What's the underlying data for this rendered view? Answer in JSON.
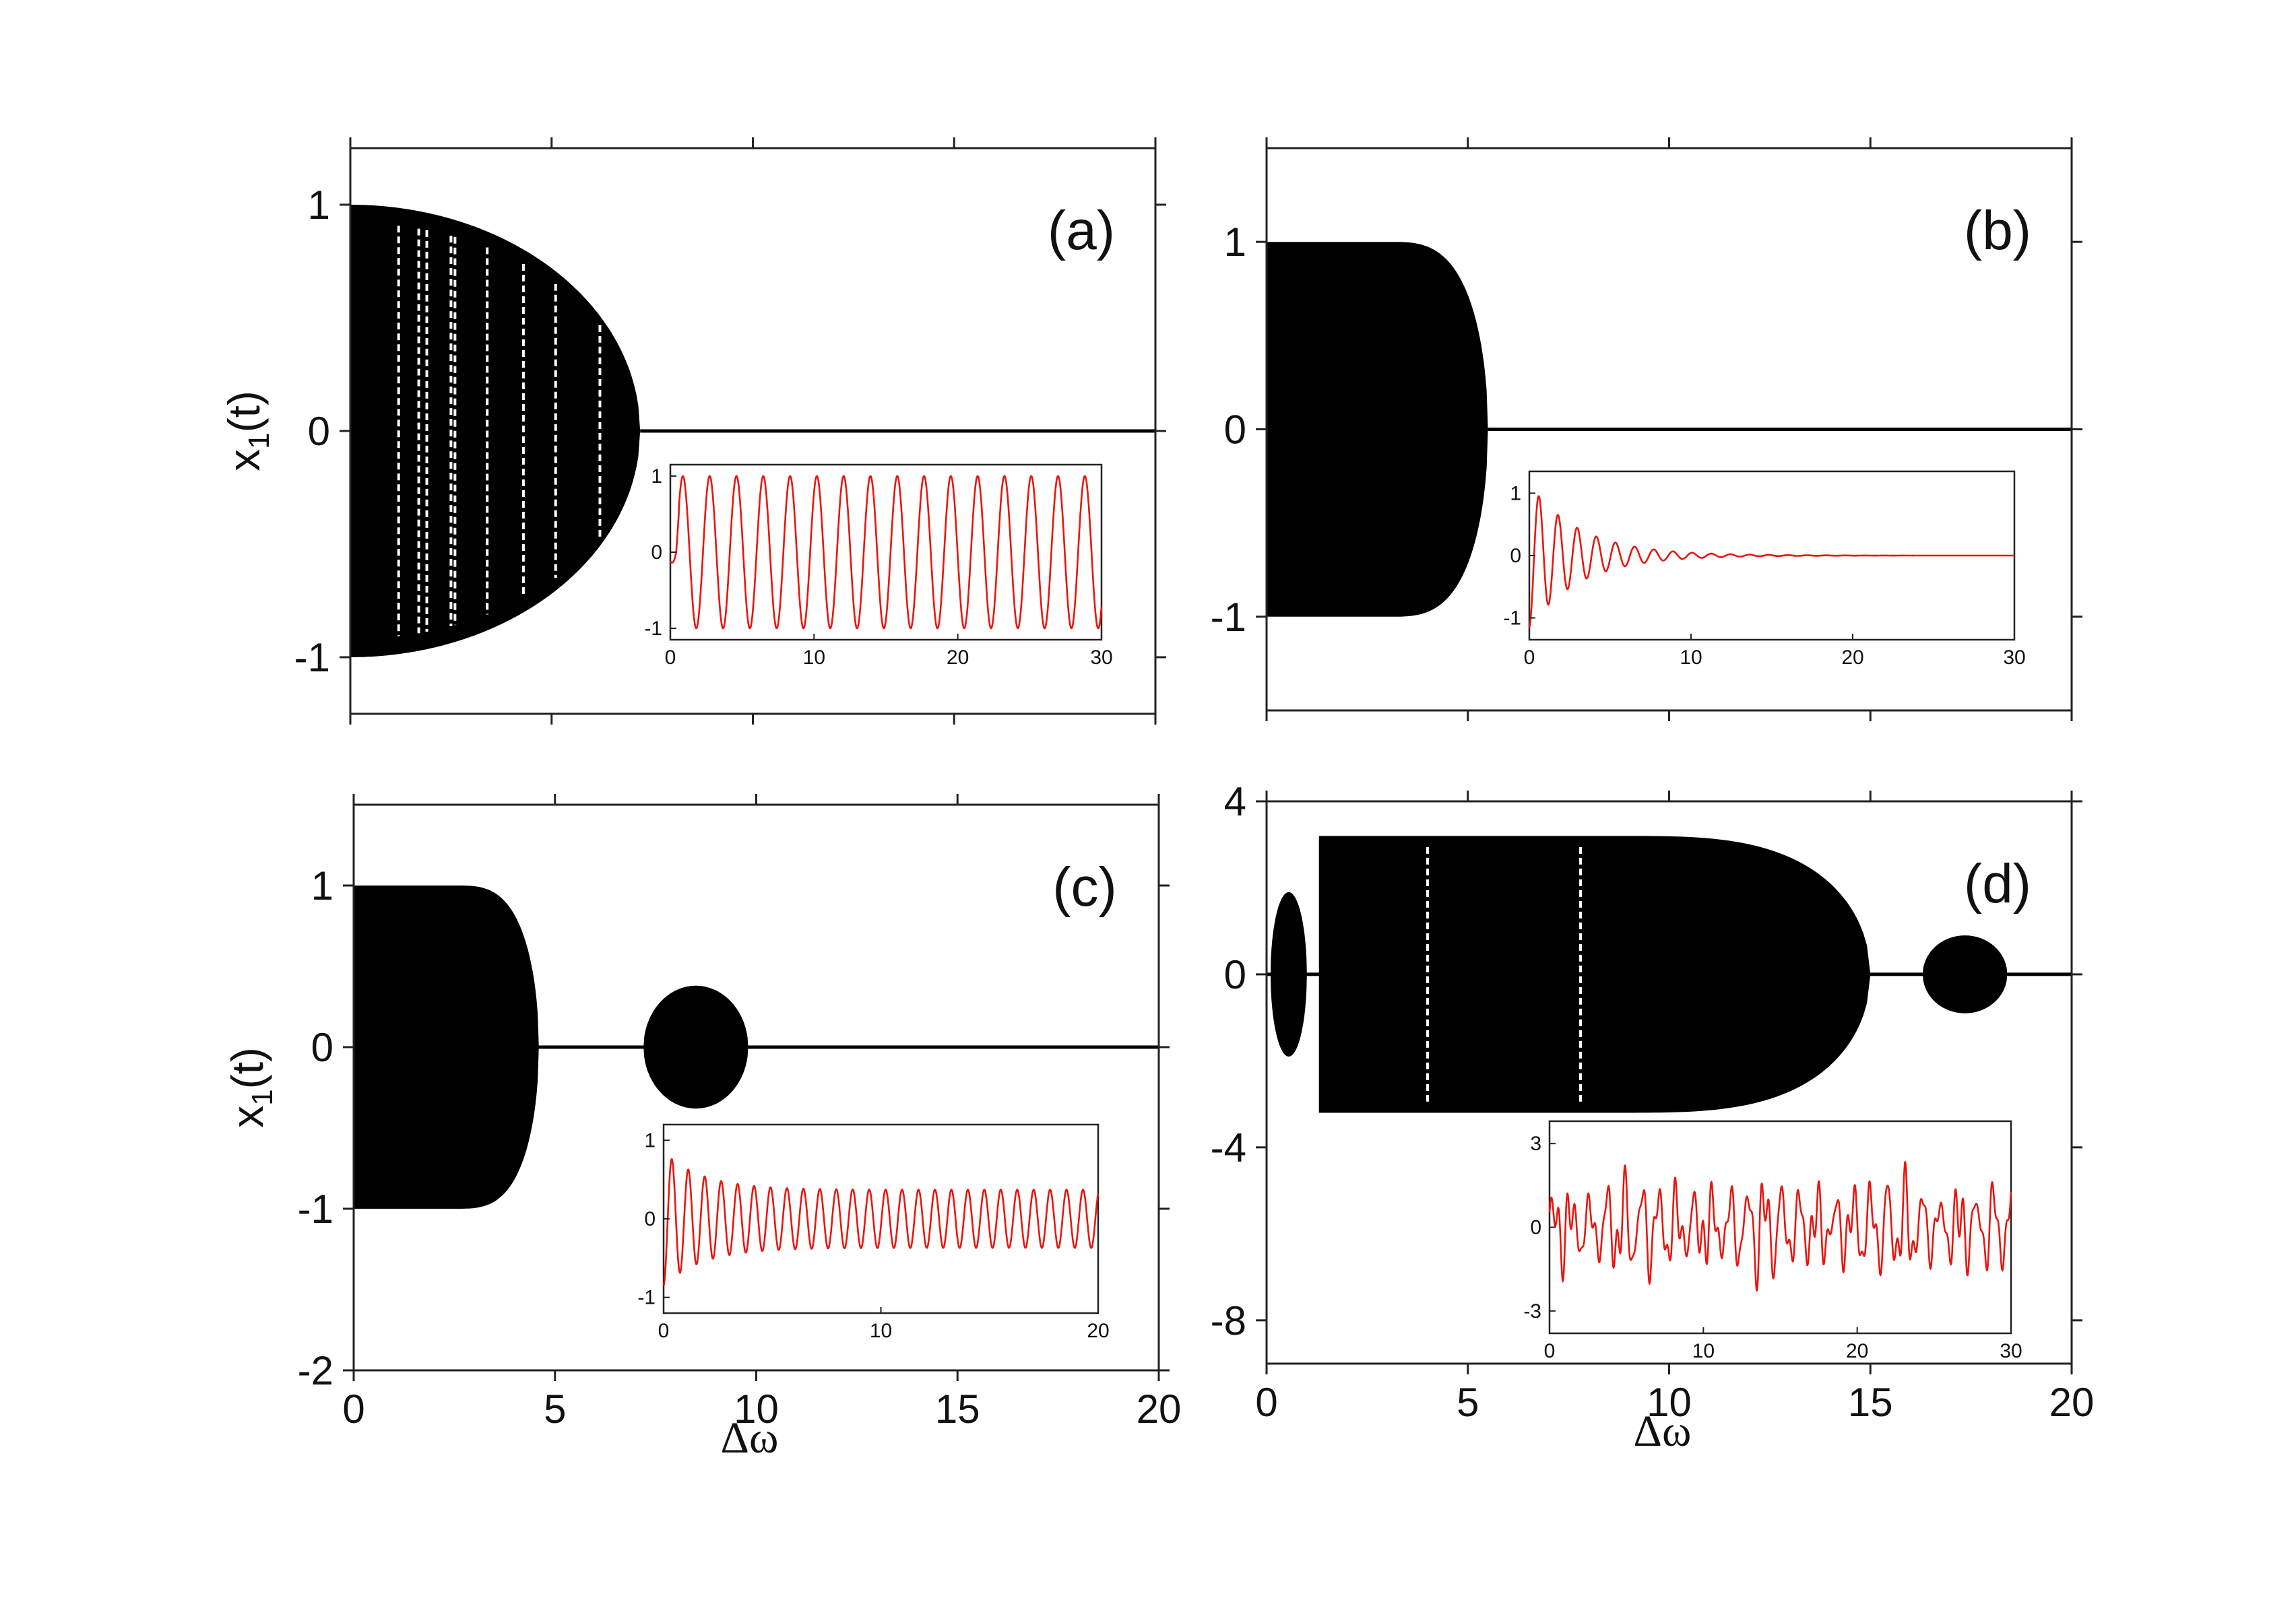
{
  "figure": {
    "xlabel": "Δω",
    "ylabel_main": "x",
    "ylabel_sub": "1",
    "ylabel_tail": "(t)"
  },
  "chart_data": [
    {
      "id": "a",
      "type": "bifurcation",
      "label": "(a)",
      "xlim": [
        0,
        20
      ],
      "ylim": [
        -1.25,
        1.25
      ],
      "xticks": [
        0,
        5,
        10,
        15,
        20
      ],
      "yticks": [
        -1,
        0,
        1
      ],
      "ytick_labels": [
        "-1",
        "0",
        "1"
      ],
      "show_xtick_labels": false,
      "show_ylabel": true,
      "show_xlabel": false,
      "regions": [
        {
          "shape": "semicircle",
          "x_start": 0,
          "x_end": 7.2,
          "amplitude": 1.0
        }
      ],
      "baseline": {
        "y": 0,
        "x_from": 7.2,
        "x_to": 20
      },
      "gaps": [
        1.2,
        1.7,
        1.9,
        2.5,
        2.6,
        3.4,
        4.3,
        5.1,
        6.2
      ],
      "inset": {
        "xlim": [
          0,
          30
        ],
        "ylim": [
          -1.15,
          1.15
        ],
        "xticks": [
          0,
          10,
          20,
          30
        ],
        "yticks": [
          -1,
          0,
          1
        ],
        "ytick_labels": [
          "-1",
          "0",
          "1"
        ],
        "signal": "sustained",
        "omega": 3.37,
        "decay": 0,
        "amp": 1.0,
        "color": "#e8160f"
      }
    },
    {
      "id": "b",
      "type": "bifurcation",
      "label": "(b)",
      "xlim": [
        0,
        20
      ],
      "ylim": [
        -1.5,
        1.5
      ],
      "xticks": [
        0,
        5,
        10,
        15,
        20
      ],
      "yticks": [
        -1,
        0,
        1
      ],
      "ytick_labels": [
        "-1",
        "0",
        "1"
      ],
      "show_xtick_labels": false,
      "show_ylabel": false,
      "show_xlabel": false,
      "regions": [
        {
          "shape": "blob",
          "x_start": 0,
          "x_end": 5.5,
          "amplitude": 1.0
        }
      ],
      "baseline": {
        "y": 0,
        "x_from": 5.5,
        "x_to": 20
      },
      "gaps": [],
      "inset": {
        "xlim": [
          0,
          30
        ],
        "ylim": [
          -1.35,
          1.35
        ],
        "xticks": [
          0,
          10,
          20,
          30
        ],
        "yticks": [
          -1,
          0,
          1
        ],
        "ytick_labels": [
          "-1",
          "0",
          "1"
        ],
        "signal": "damped",
        "omega": 5.3,
        "decay": 0.32,
        "amp": 1.0,
        "color": "#e8160f"
      }
    },
    {
      "id": "c",
      "type": "bifurcation",
      "label": "(c)",
      "xlim": [
        0,
        20
      ],
      "ylim": [
        -2,
        1.5
      ],
      "xticks": [
        0,
        5,
        10,
        15,
        20
      ],
      "yticks": [
        -2,
        -1,
        0,
        1
      ],
      "ytick_labels": [
        "-2",
        "-1",
        "0",
        "1"
      ],
      "xtick_labels": [
        "0",
        "5",
        "10",
        "15",
        "20"
      ],
      "show_xtick_labels": true,
      "show_ylabel": true,
      "show_xlabel": true,
      "regions": [
        {
          "shape": "blob",
          "x_start": 0,
          "x_end": 4.6,
          "amplitude": 1.0
        },
        {
          "shape": "ellipse",
          "x_start": 7.2,
          "x_end": 9.8,
          "amplitude": 0.38
        }
      ],
      "baseline": {
        "y": 0,
        "x_from": 0,
        "x_to": 20
      },
      "gaps": [],
      "inset": {
        "xlim": [
          0,
          20
        ],
        "ylim": [
          -1.2,
          1.2
        ],
        "xticks": [
          0,
          10,
          20
        ],
        "yticks": [
          -1,
          0,
          1
        ],
        "ytick_labels": [
          "-1",
          "0",
          "1"
        ],
        "signal": "damped_to_limit",
        "omega": 8.3,
        "decay": 0.55,
        "amp": 0.85,
        "limit": 0.37,
        "color": "#e8160f"
      }
    },
    {
      "id": "d",
      "type": "bifurcation",
      "label": "(d)",
      "xlim": [
        0,
        20
      ],
      "ylim": [
        -9,
        4
      ],
      "xticks": [
        0,
        5,
        10,
        15,
        20
      ],
      "yticks": [
        -8,
        -4,
        0,
        4
      ],
      "ytick_labels": [
        "-8",
        "-4",
        "0",
        "4"
      ],
      "xtick_labels": [
        "0",
        "5",
        "10",
        "15",
        "20"
      ],
      "show_xtick_labels": true,
      "show_ylabel": false,
      "show_xlabel": true,
      "regions": [
        {
          "shape": "ellipse",
          "x_start": 0.1,
          "x_end": 1.0,
          "amplitude": 1.9
        },
        {
          "shape": "blob",
          "x_start": 1.3,
          "x_end": 15.0,
          "amplitude": 3.2,
          "lift": 0
        },
        {
          "shape": "ellipse",
          "x_start": 16.3,
          "x_end": 18.4,
          "amplitude": 0.9
        }
      ],
      "baseline": {
        "y": 0,
        "x_from": 0,
        "x_to": 20
      },
      "gaps": [
        4.0,
        7.8
      ],
      "inset": {
        "xlim": [
          0,
          30
        ],
        "ylim": [
          -3.8,
          3.8
        ],
        "xticks": [
          0,
          10,
          20,
          30
        ],
        "yticks": [
          -3,
          0,
          3
        ],
        "ytick_labels": [
          "-3",
          "0",
          "3"
        ],
        "signal": "chaotic",
        "omega": 5.5,
        "decay": 0,
        "amp": 1.0,
        "color": "#e8160f"
      }
    }
  ]
}
